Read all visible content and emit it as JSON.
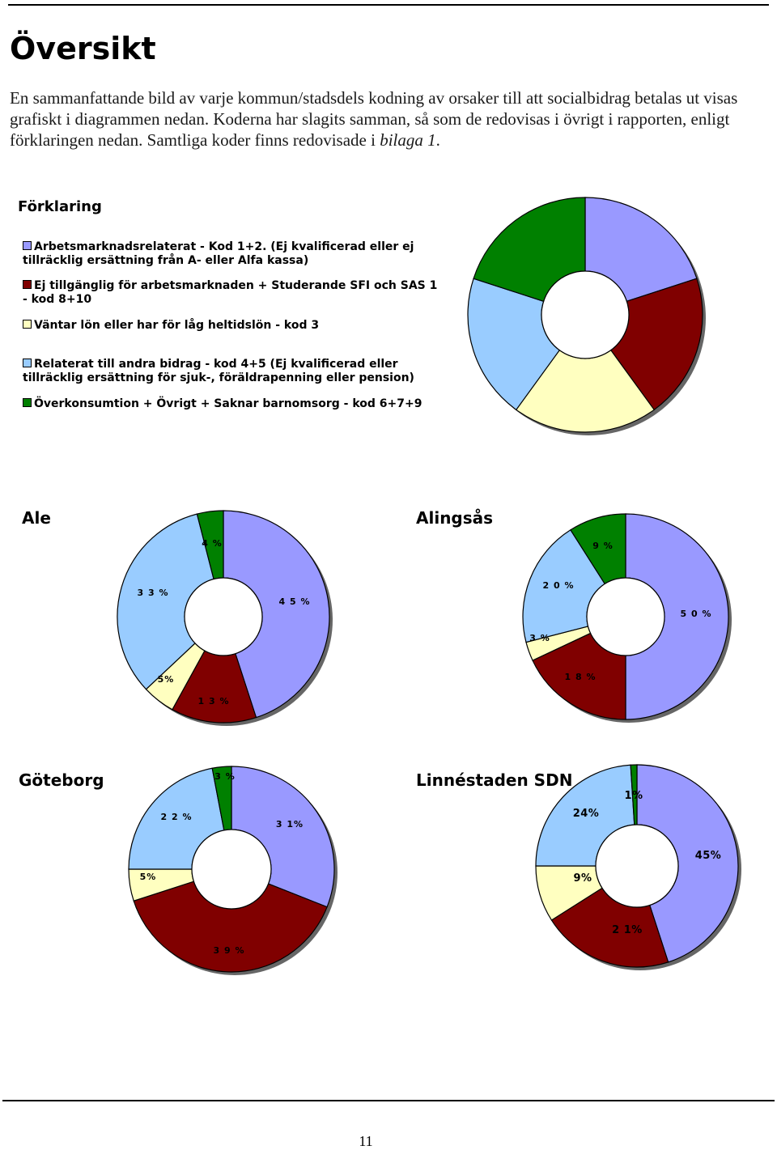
{
  "page": {
    "heading": "Översikt",
    "intro_part1": "En sammanfattande bild av varje kommun/stadsdels kodning av orsaker till att socialbidrag betalas ut visas grafiskt i diagrammen nedan. Koderna har slagits samman, så som de redovisas i övrigt i rapporten, enligt förklaringen nedan. Samtliga koder finns redovisade i ",
    "intro_em": "bilaga 1",
    "intro_end": ".",
    "legend_heading": "Förklaring",
    "page_number": "11"
  },
  "legend": [
    {
      "label": "Arbetsmarknadsrelaterat - Kod 1+2. (Ej kvalificerad eller ej tillräcklig ersättning från A- eller Alfa kassa)",
      "color": "#9999ff"
    },
    {
      "label": "Ej tillgänglig för arbetsmarknaden + Studerande SFI och SAS 1 - kod 8+10",
      "color": "#800000"
    },
    {
      "label": "Väntar lön eller har för låg heltidslön - kod 3",
      "color": "#ffffc0"
    },
    {
      "label": "Relaterat till andra bidrag - kod 4+5 (Ej kvalificerad eller tillräcklig ersättning för sjuk-, föräldrapenning eller pension)",
      "color": "#99ccff"
    },
    {
      "label": "Överkonsumtion + Övrigt + Saknar barnomsorg - kod 6+7+9",
      "color": "#008000"
    }
  ],
  "chart_data": [
    {
      "type": "pie",
      "title": "",
      "categories": [
        "Arbetsmarknadsrelaterat",
        "Ej tillgänglig för arbetsmarknaden",
        "Väntar lön",
        "Relaterat till andra bidrag",
        "Överkonsumtion + Övrigt"
      ],
      "values": [
        20,
        20,
        20,
        20,
        20
      ],
      "labels": [
        "",
        "",
        "",
        "",
        ""
      ]
    },
    {
      "type": "pie",
      "title": "Ale",
      "categories": [
        "Arbetsmarknadsrelaterat",
        "Ej tillgänglig för arbetsmarknaden",
        "Väntar lön",
        "Relaterat till andra bidrag",
        "Överkonsumtion + Övrigt"
      ],
      "values": [
        45,
        13,
        5,
        33,
        4
      ],
      "labels": [
        "4 5 %",
        "1 3 %",
        "5%",
        "3 3 %",
        "4 %"
      ]
    },
    {
      "type": "pie",
      "title": "Alingsås",
      "categories": [
        "Arbetsmarknadsrelaterat",
        "Ej tillgänglig för arbetsmarknaden",
        "Väntar lön",
        "Relaterat till andra bidrag",
        "Överkonsumtion + Övrigt"
      ],
      "values": [
        50,
        18,
        3,
        20,
        9
      ],
      "labels": [
        "5 0 %",
        "1 8 %",
        "3 %",
        "2 0 %",
        "9 %"
      ]
    },
    {
      "type": "pie",
      "title": "Göteborg",
      "categories": [
        "Arbetsmarknadsrelaterat",
        "Ej tillgänglig för arbetsmarknaden",
        "Väntar lön",
        "Relaterat till andra bidrag",
        "Överkonsumtion + Övrigt"
      ],
      "values": [
        31,
        39,
        5,
        22,
        3
      ],
      "labels": [
        "3 1%",
        "3 9 %",
        "5%",
        "2 2 %",
        "3 %"
      ]
    },
    {
      "type": "pie",
      "title": "Linnéstaden SDN",
      "categories": [
        "Arbetsmarknadsrelaterat",
        "Ej tillgänglig för arbetsmarknaden",
        "Väntar lön",
        "Relaterat till andra bidrag",
        "Överkonsumtion + Övrigt"
      ],
      "values": [
        45,
        21,
        9,
        24,
        1
      ],
      "labels": [
        "45%",
        "2 1%",
        "9%",
        "24%",
        "1%"
      ]
    }
  ]
}
